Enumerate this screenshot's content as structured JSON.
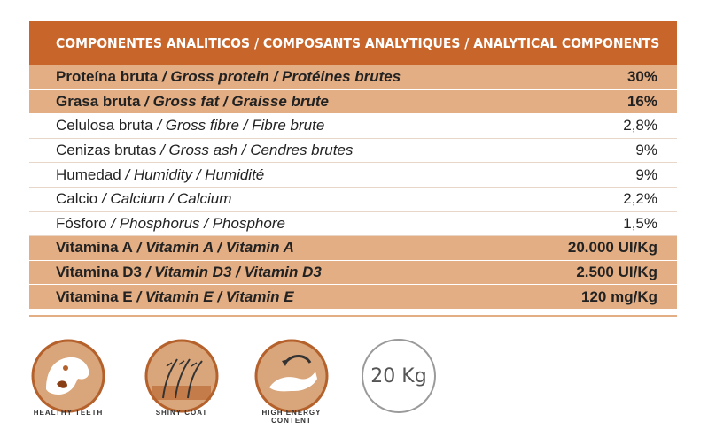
{
  "table": {
    "header": "COMPONENTES ANALITICOS / COMPOSANTS ANALYTIQUES / ANALYTICAL COMPONENTS",
    "rows": [
      {
        "es": "Proteína bruta",
        "rest": " / Gross protein / Protéines brutes",
        "value": "30%",
        "highlight": true
      },
      {
        "es": "Grasa bruta",
        "rest": " / Gross fat / Graisse brute",
        "value": "16%",
        "highlight": true
      },
      {
        "es": "Celulosa bruta",
        "rest": " / Gross fibre / Fibre brute",
        "value": "2,8%",
        "highlight": false
      },
      {
        "es": "Cenizas brutas",
        "rest": " / Gross ash / Cendres brutes",
        "value": "9%",
        "highlight": false
      },
      {
        "es": "Humedad",
        "rest": " / Humidity / Humidité",
        "value": "9%",
        "highlight": false
      },
      {
        "es": "Calcio",
        "rest": " / Calcium / Calcium",
        "value": "2,2%",
        "highlight": false
      },
      {
        "es": "Fósforo",
        "rest": " / Phosphorus / Phosphore",
        "value": "1,5%",
        "highlight": false
      },
      {
        "es": "Vitamina A",
        "rest": " / Vitamin A / Vitamin A",
        "value": "20.000 UI/Kg",
        "highlight": true
      },
      {
        "es": "Vitamina D3",
        "rest": " / Vitamin D3 / Vitamin D3",
        "value": "2.500 UI/Kg",
        "highlight": true
      },
      {
        "es": "Vitamina E",
        "rest": " / Vitamin E / Vitamin E",
        "value": "120 mg/Kg",
        "highlight": true
      }
    ]
  },
  "badges": {
    "teeth": {
      "label": "HEALTHY TEETH",
      "icon": "dog-teeth-icon"
    },
    "coat": {
      "label": "SHINY COAT",
      "icon": "hair-icon"
    },
    "energy": {
      "label": "HIGH ENERGY CONTENT",
      "icon": "jumping-dog-icon"
    },
    "weight": {
      "label": "20 Kg",
      "icon": "weight-circle-icon"
    }
  },
  "colors": {
    "header": "#c8652a",
    "highlight": "#e3ae84",
    "badge_fill": "#d9a57a",
    "badge_ring": "#b5612c"
  }
}
